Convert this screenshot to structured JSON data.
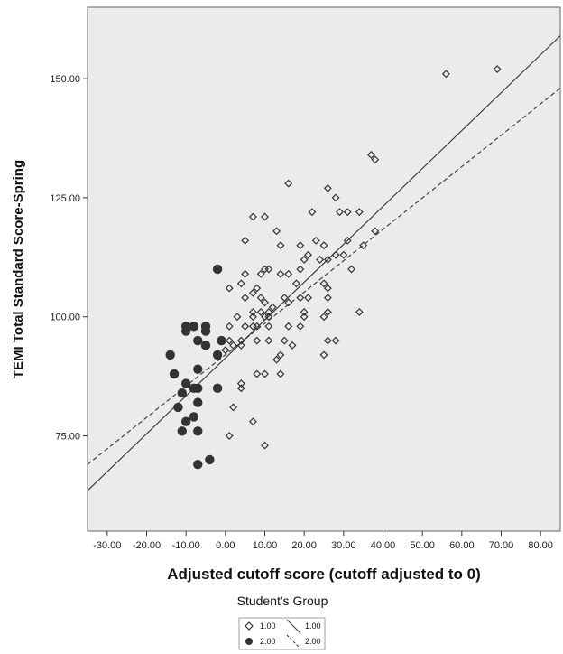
{
  "chart_data": {
    "type": "scatter",
    "xlabel": "Adjusted cutoff score (cutoff adjusted to 0)",
    "ylabel": "TEMI Total Standard Score-Spring",
    "xlim": [
      -35,
      85
    ],
    "ylim": [
      55,
      165
    ],
    "x_ticks": [
      "-30.00",
      "-20.00",
      "-10.00",
      "0.00",
      "10.00",
      "20.00",
      "30.00",
      "40.00",
      "50.00",
      "60.00",
      "70.00",
      "80.00"
    ],
    "x_tick_values": [
      -30,
      -20,
      -10,
      0,
      10,
      20,
      30,
      40,
      50,
      60,
      70,
      80
    ],
    "y_ticks": [
      "75.00",
      "100.00",
      "125.00",
      "150.00"
    ],
    "y_tick_values": [
      75,
      100,
      125,
      150
    ],
    "grid": false,
    "background_color": "#ebebeb",
    "legend": {
      "title": "Student's Group",
      "position": "bottom-center",
      "markers": [
        {
          "label": "1.00",
          "symbol": "diamond-open"
        },
        {
          "label": "2.00",
          "symbol": "circle-filled"
        }
      ],
      "lines": [
        {
          "label": "1.00",
          "style": "solid"
        },
        {
          "label": "2.00",
          "style": "dashed"
        }
      ]
    },
    "series": [
      {
        "name": "1.00",
        "marker": "diamond-open",
        "points": [
          [
            56,
            151
          ],
          [
            69,
            152
          ],
          [
            37,
            134
          ],
          [
            38,
            133
          ],
          [
            16,
            128
          ],
          [
            26,
            127
          ],
          [
            28,
            125
          ],
          [
            7,
            121
          ],
          [
            10,
            121
          ],
          [
            22,
            122
          ],
          [
            29,
            122
          ],
          [
            31,
            122
          ],
          [
            34,
            122
          ],
          [
            5,
            116
          ],
          [
            13,
            118
          ],
          [
            23,
            116
          ],
          [
            38,
            118
          ],
          [
            14,
            115
          ],
          [
            19,
            115
          ],
          [
            25,
            115
          ],
          [
            31,
            116
          ],
          [
            35,
            115
          ],
          [
            21,
            113
          ],
          [
            28,
            113
          ],
          [
            30,
            113
          ],
          [
            26,
            112
          ],
          [
            20,
            112
          ],
          [
            24,
            112
          ],
          [
            19,
            110
          ],
          [
            10,
            110
          ],
          [
            11,
            110
          ],
          [
            5,
            109
          ],
          [
            9,
            109
          ],
          [
            14,
            109
          ],
          [
            16,
            109
          ],
          [
            32,
            110
          ],
          [
            4,
            107
          ],
          [
            8,
            106
          ],
          [
            18,
            107
          ],
          [
            25,
            107
          ],
          [
            1,
            106
          ],
          [
            7,
            105
          ],
          [
            26,
            106
          ],
          [
            5,
            104
          ],
          [
            9,
            104
          ],
          [
            15,
            104
          ],
          [
            19,
            104
          ],
          [
            21,
            104
          ],
          [
            26,
            104
          ],
          [
            12,
            102
          ],
          [
            16,
            103
          ],
          [
            10,
            103
          ],
          [
            7,
            101
          ],
          [
            9,
            101
          ],
          [
            11,
            101
          ],
          [
            20,
            101
          ],
          [
            26,
            101
          ],
          [
            3,
            100
          ],
          [
            7,
            100
          ],
          [
            10,
            100
          ],
          [
            11,
            100
          ],
          [
            20,
            100
          ],
          [
            25,
            100
          ],
          [
            34,
            101
          ],
          [
            1,
            98
          ],
          [
            5,
            98
          ],
          [
            8,
            98
          ],
          [
            11,
            98
          ],
          [
            16,
            98
          ],
          [
            19,
            98
          ],
          [
            1,
            95
          ],
          [
            4,
            95
          ],
          [
            8,
            95
          ],
          [
            15,
            95
          ],
          [
            26,
            95
          ],
          [
            28,
            95
          ],
          [
            2,
            94
          ],
          [
            17,
            94
          ],
          [
            4,
            94
          ],
          [
            11,
            95
          ],
          [
            0,
            93
          ],
          [
            7,
            98
          ],
          [
            14,
            92
          ],
          [
            25,
            92
          ],
          [
            13,
            91
          ],
          [
            4,
            86
          ],
          [
            4,
            85
          ],
          [
            8,
            88
          ],
          [
            10,
            88
          ],
          [
            14,
            88
          ],
          [
            2,
            81
          ],
          [
            7,
            78
          ],
          [
            1,
            75
          ],
          [
            10,
            73
          ]
        ]
      },
      {
        "name": "2.00",
        "marker": "circle-filled",
        "points": [
          [
            -2,
            110
          ],
          [
            -10,
            98
          ],
          [
            -8,
            98
          ],
          [
            -5,
            98
          ],
          [
            -10,
            97
          ],
          [
            -5,
            97
          ],
          [
            -7,
            95
          ],
          [
            -1,
            95
          ],
          [
            -14,
            92
          ],
          [
            -5,
            94
          ],
          [
            -2,
            92
          ],
          [
            -13,
            88
          ],
          [
            -7,
            89
          ],
          [
            -10,
            86
          ],
          [
            -8,
            85
          ],
          [
            -7,
            85
          ],
          [
            -2,
            85
          ],
          [
            -11,
            84
          ],
          [
            -7,
            82
          ],
          [
            -12,
            81
          ],
          [
            -8,
            79
          ],
          [
            -10,
            78
          ],
          [
            -11,
            76
          ],
          [
            -7,
            76
          ],
          [
            -4,
            70
          ],
          [
            -7,
            69
          ]
        ]
      }
    ],
    "fit_lines": [
      {
        "name": "1.00",
        "style": "solid",
        "x": [
          -35,
          85
        ],
        "y": [
          63.5,
          159
        ]
      },
      {
        "name": "2.00",
        "style": "dashed",
        "x": [
          -35,
          85
        ],
        "y": [
          69,
          148
        ]
      }
    ]
  },
  "colors": {
    "plot_background": "#ebebeb",
    "marker_stroke": "#333333",
    "marker_fill_group2": "#333333",
    "line_color": "#333333"
  }
}
